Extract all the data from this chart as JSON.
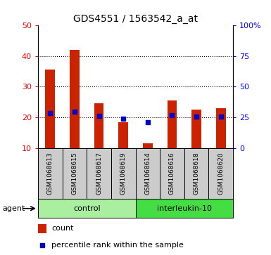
{
  "title": "GDS4551 / 1563542_a_at",
  "samples": [
    "GSM1068613",
    "GSM1068615",
    "GSM1068617",
    "GSM1068619",
    "GSM1068614",
    "GSM1068616",
    "GSM1068618",
    "GSM1068620"
  ],
  "counts": [
    35.5,
    42.0,
    24.5,
    18.5,
    11.5,
    25.5,
    22.5,
    23.0
  ],
  "percentiles": [
    28.5,
    29.5,
    26.0,
    24.0,
    21.0,
    26.5,
    25.5,
    25.5
  ],
  "bar_color": "#CC2200",
  "dot_color": "#0000CC",
  "ylim_left": [
    10,
    50
  ],
  "ylim_right": [
    0,
    100
  ],
  "yticks_left": [
    10,
    20,
    30,
    40,
    50
  ],
  "yticks_right": [
    0,
    25,
    50,
    75,
    100
  ],
  "ytick_labels_right": [
    "0",
    "25",
    "50",
    "75",
    "100%"
  ],
  "grid_values": [
    20,
    30,
    40
  ],
  "label_bg_color": "#cccccc",
  "control_color": "#aaeea0",
  "il10_color": "#44dd44",
  "agent_label": "agent",
  "legend_count": "count",
  "legend_percentile": "percentile rank within the sample",
  "bar_width": 0.4,
  "dot_size": 5
}
